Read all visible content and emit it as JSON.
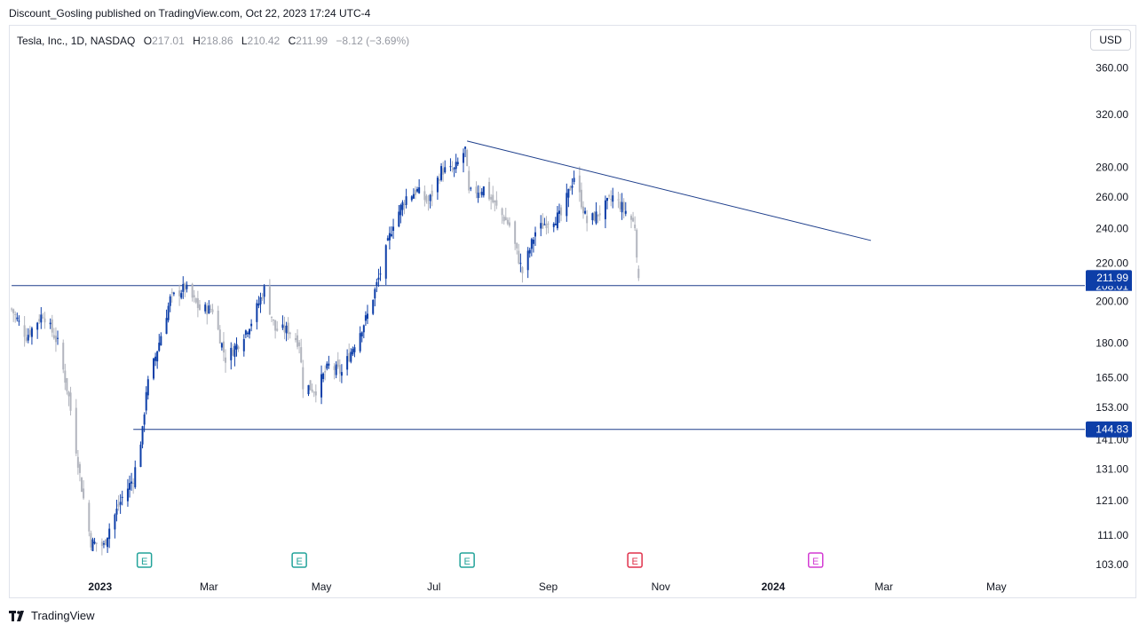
{
  "publisher_line": "Discount_Gosling published on TradingView.com, Oct 22, 2023 17:24 UTC-4",
  "legend": {
    "symbol": "Tesla, Inc., 1D, NASDAQ",
    "o_label": "O",
    "o_value": "217.01",
    "h_label": "H",
    "h_value": "218.86",
    "l_label": "L",
    "l_value": "210.42",
    "c_label": "C",
    "c_value": "211.99",
    "change": "−8.12 (−3.69%)"
  },
  "currency_button": "USD",
  "brand": "TradingView",
  "colors": {
    "up": "#0d3ea8",
    "down": "#b2b5be",
    "line": "#1e3f8c",
    "label_bg": "#0d3ea8",
    "earnings_past": "#22a39a",
    "earnings_recent": "#e0314b",
    "earnings_future": "#d43cd4"
  },
  "chart_data": {
    "type": "candlestick",
    "symbol": "TSLA",
    "interval": "1D",
    "y_scale": "log",
    "ylim": [
      101,
      375
    ],
    "y_ticks": [
      "360.00",
      "320.00",
      "280.00",
      "260.00",
      "240.00",
      "220.00",
      "200.00",
      "180.00",
      "165.00",
      "153.00",
      "141.00",
      "131.00",
      "121.00",
      "111.00",
      "103.00"
    ],
    "x_ticks": [
      {
        "label": "2023",
        "date": "2023-01-01",
        "bold": true
      },
      {
        "label": "Mar",
        "date": "2023-03-01"
      },
      {
        "label": "May",
        "date": "2023-05-01"
      },
      {
        "label": "Jul",
        "date": "2023-07-01"
      },
      {
        "label": "Sep",
        "date": "2023-09-01"
      },
      {
        "label": "Nov",
        "date": "2023-11-01"
      },
      {
        "label": "2024",
        "date": "2024-01-01",
        "bold": true
      },
      {
        "label": "Mar",
        "date": "2024-03-01"
      },
      {
        "label": "May",
        "date": "2024-05-01"
      }
    ],
    "xlim": [
      "2022-11-13",
      "2024-06-18"
    ],
    "price_labels": [
      {
        "value": 211.99,
        "text": "211.99"
      },
      {
        "value": 144.83,
        "text": "144.83"
      }
    ],
    "hidden_label": "208.01",
    "horizontal_lines": [
      {
        "value": 208.01,
        "from": "2022-11-14"
      },
      {
        "value": 144.83,
        "from": "2023-01-19"
      }
    ],
    "trend_line": {
      "start": [
        "2023-07-19",
        299.3
      ],
      "end": [
        "2024-02-23",
        233.0
      ]
    },
    "earnings": [
      {
        "date": "2023-01-25",
        "label": "E",
        "kind": "past"
      },
      {
        "date": "2023-04-19",
        "label": "E",
        "kind": "past"
      },
      {
        "date": "2023-07-19",
        "label": "E",
        "kind": "past"
      },
      {
        "date": "2023-10-18",
        "label": "E",
        "kind": "recent"
      },
      {
        "date": "2024-01-24",
        "label": "E",
        "kind": "future"
      }
    ],
    "anchors": [
      [
        "2022-11-14",
        196
      ],
      [
        "2022-11-22",
        183
      ],
      [
        "2022-12-01",
        194
      ],
      [
        "2022-12-09",
        180
      ],
      [
        "2022-12-15",
        157
      ],
      [
        "2022-12-22",
        125
      ],
      [
        "2022-12-27",
        109
      ],
      [
        "2023-01-03",
        108
      ],
      [
        "2023-01-06",
        113
      ],
      [
        "2023-01-13",
        122
      ],
      [
        "2023-01-19",
        128
      ],
      [
        "2023-01-24",
        144
      ],
      [
        "2023-01-26",
        160
      ],
      [
        "2023-01-31",
        174
      ],
      [
        "2023-02-08",
        201
      ],
      [
        "2023-02-16",
        207
      ],
      [
        "2023-02-24",
        196
      ],
      [
        "2023-03-03",
        196
      ],
      [
        "2023-03-10",
        173
      ],
      [
        "2023-03-17",
        180
      ],
      [
        "2023-03-24",
        190
      ],
      [
        "2023-03-31",
        206
      ],
      [
        "2023-04-06",
        186
      ],
      [
        "2023-04-13",
        186
      ],
      [
        "2023-04-19",
        180
      ],
      [
        "2023-04-21",
        162
      ],
      [
        "2023-04-28",
        160
      ],
      [
        "2023-05-05",
        170
      ],
      [
        "2023-05-12",
        167
      ],
      [
        "2023-05-19",
        180
      ],
      [
        "2023-05-26",
        193
      ],
      [
        "2023-06-02",
        215
      ],
      [
        "2023-06-09",
        244
      ],
      [
        "2023-06-16",
        260
      ],
      [
        "2023-06-22",
        264
      ],
      [
        "2023-06-28",
        256
      ],
      [
        "2023-07-05",
        278
      ],
      [
        "2023-07-12",
        278
      ],
      [
        "2023-07-18",
        293
      ],
      [
        "2023-07-20",
        262
      ],
      [
        "2023-07-28",
        266
      ],
      [
        "2023-08-04",
        253
      ],
      [
        "2023-08-11",
        242
      ],
      [
        "2023-08-18",
        215
      ],
      [
        "2023-08-25",
        238
      ],
      [
        "2023-09-01",
        245
      ],
      [
        "2023-09-08",
        248
      ],
      [
        "2023-09-15",
        274
      ],
      [
        "2023-09-22",
        244
      ],
      [
        "2023-09-29",
        250
      ],
      [
        "2023-10-06",
        260
      ],
      [
        "2023-10-13",
        251
      ],
      [
        "2023-10-18",
        242
      ],
      [
        "2023-10-20",
        212
      ]
    ]
  }
}
